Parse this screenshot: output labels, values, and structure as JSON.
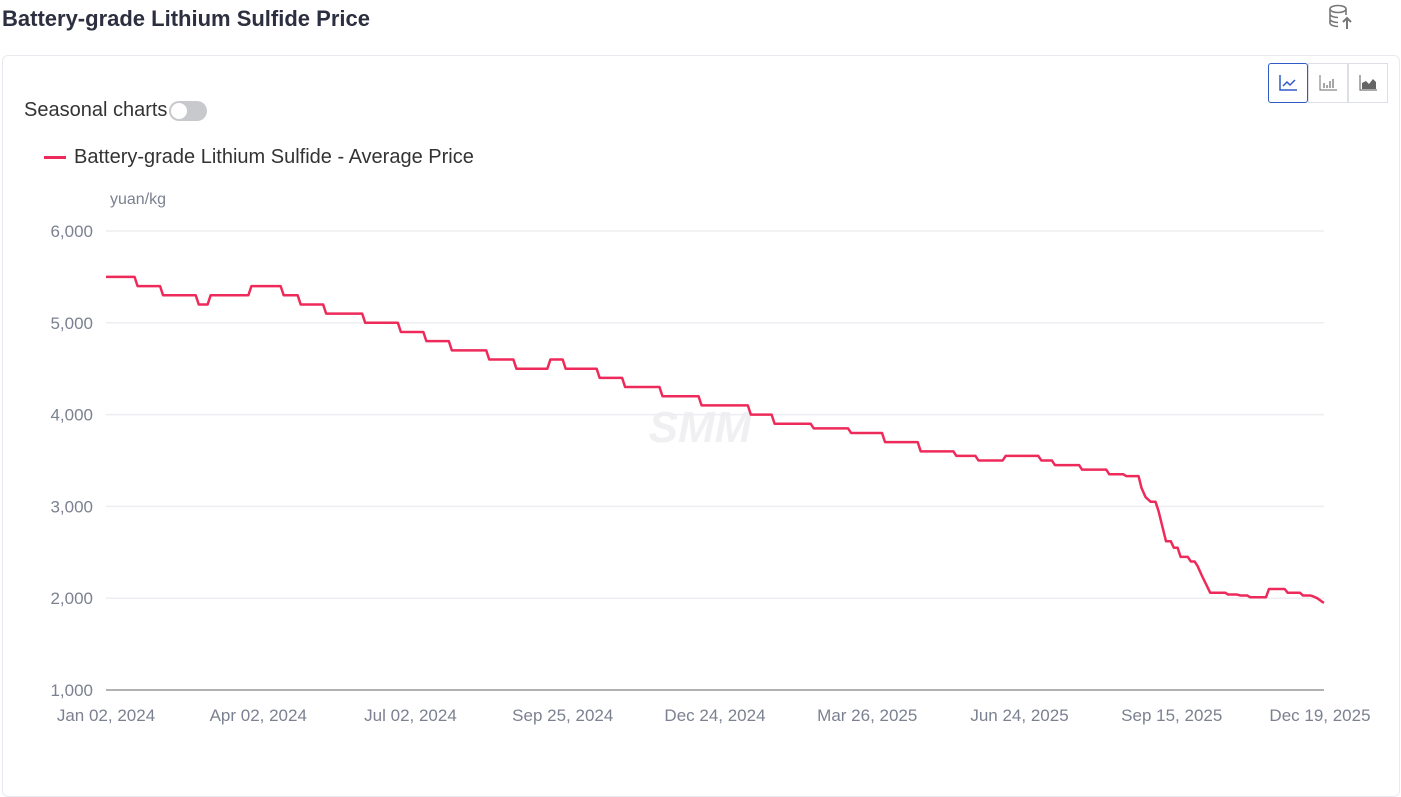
{
  "header": {
    "title": "Battery-grade Lithium Sulfide Price",
    "export_icon": "database-upload-icon"
  },
  "controls": {
    "seasonal_label": "Seasonal charts",
    "seasonal_on": false,
    "chart_types": [
      "line-chart-icon",
      "bar-chart-icon",
      "area-chart-icon"
    ],
    "active_type": "line"
  },
  "colors": {
    "series": "#ee2a5a",
    "accent": "#2f5ac8"
  },
  "chart_data": {
    "type": "line",
    "title": "Battery-grade Lithium Sulfide Price",
    "ylabel": "yuan/kg",
    "xlabel": "",
    "ylim": [
      1000,
      6000
    ],
    "yticks": [
      "1,000",
      "2,000",
      "3,000",
      "4,000",
      "5,000",
      "6,000"
    ],
    "xticks": [
      "Jan 02, 2024",
      "Apr 02, 2024",
      "Jul 02, 2024",
      "Sep 25, 2024",
      "Dec 24, 2024",
      "Mar 26, 2025",
      "Jun 24, 2025",
      "Sep 15, 2025",
      "Dec 19, 2025"
    ],
    "x_unit": "days since Jan 02, 2024",
    "xlim": [
      0,
      717
    ],
    "grid": true,
    "legend_position": "top-left",
    "watermark": "SMM",
    "series": [
      {
        "name": "Battery-grade Lithium Sulfide - Average Price",
        "step": true,
        "points": [
          [
            0,
            5500
          ],
          [
            18,
            5400
          ],
          [
            33,
            5300
          ],
          [
            54,
            5200
          ],
          [
            61,
            5300
          ],
          [
            85,
            5400
          ],
          [
            104,
            5300
          ],
          [
            114,
            5200
          ],
          [
            129,
            5100
          ],
          [
            152,
            5000
          ],
          [
            173,
            4900
          ],
          [
            188,
            4800
          ],
          [
            203,
            4700
          ],
          [
            225,
            4600
          ],
          [
            241,
            4500
          ],
          [
            261,
            4600
          ],
          [
            270,
            4500
          ],
          [
            290,
            4400
          ],
          [
            305,
            4300
          ],
          [
            327,
            4200
          ],
          [
            350,
            4100
          ],
          [
            379,
            4000
          ],
          [
            393,
            3900
          ],
          [
            416,
            3850
          ],
          [
            438,
            3800
          ],
          [
            458,
            3700
          ],
          [
            479,
            3600
          ],
          [
            500,
            3550
          ],
          [
            513,
            3500
          ],
          [
            529,
            3550
          ],
          [
            550,
            3500
          ],
          [
            558,
            3450
          ],
          [
            574,
            3400
          ],
          [
            590,
            3350
          ],
          [
            600,
            3330
          ],
          [
            609,
            3200
          ],
          [
            612,
            3100
          ],
          [
            615,
            3050
          ],
          [
            619,
            2950
          ],
          [
            624,
            2620
          ],
          [
            628,
            2550
          ],
          [
            632,
            2450
          ],
          [
            638,
            2400
          ],
          [
            642,
            2350
          ],
          [
            645,
            2250
          ],
          [
            650,
            2060
          ],
          [
            660,
            2040
          ],
          [
            667,
            2030
          ],
          [
            673,
            2010
          ],
          [
            684,
            2100
          ],
          [
            695,
            2060
          ],
          [
            704,
            2030
          ],
          [
            710,
            2020
          ],
          [
            713,
            2000
          ],
          [
            716,
            1960
          ],
          [
            717,
            1950
          ]
        ]
      }
    ]
  }
}
